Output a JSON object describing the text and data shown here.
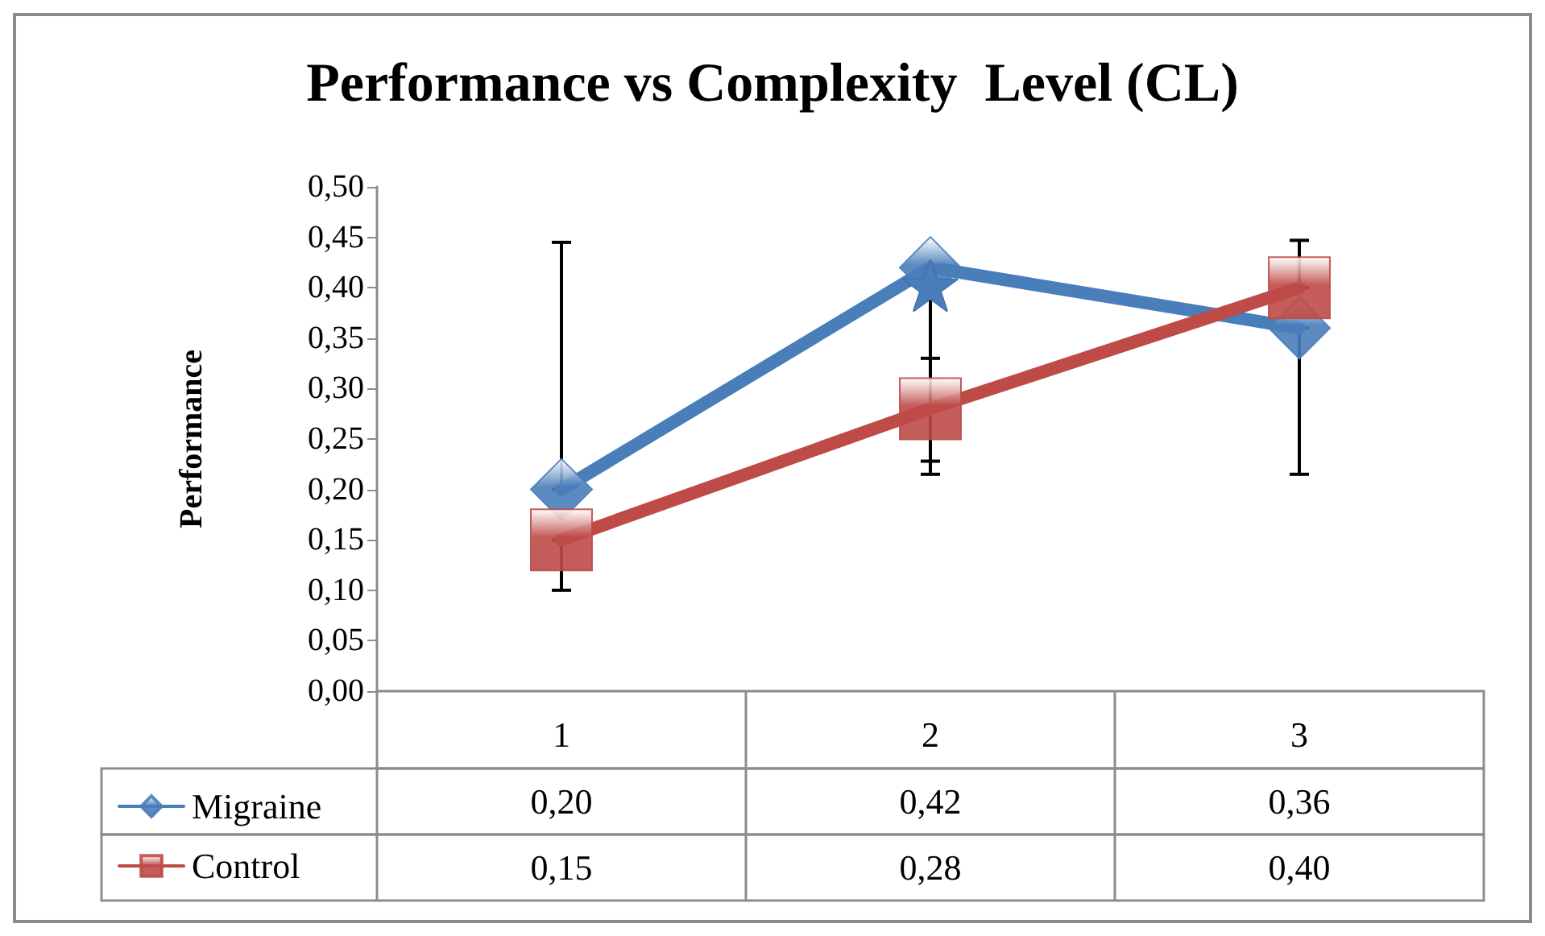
{
  "chart_data": {
    "type": "line",
    "title": "Performance vs Complexity  Level (CL)",
    "ylabel": "Performance",
    "categories": [
      "1",
      "2",
      "3"
    ],
    "series": [
      {
        "name": "Migraine",
        "color": "#4a7ebb",
        "marker": "diamond",
        "values": [
          0.2,
          0.42,
          0.36
        ],
        "value_labels": [
          "0,20",
          "0,42",
          "0,36"
        ],
        "errors": [
          [
            0.2,
            0.445
          ],
          [
            0.215,
            0.42
          ],
          [
            0.215,
            0.36
          ]
        ]
      },
      {
        "name": "Control",
        "color": "#be4b48",
        "marker": "square",
        "values": [
          0.15,
          0.28,
          0.4
        ],
        "value_labels": [
          "0,15",
          "0,28",
          "0,40"
        ],
        "errors": [
          [
            0.1,
            0.15
          ],
          [
            0.228,
            0.33
          ],
          [
            0.4,
            0.447
          ]
        ]
      }
    ],
    "ylim": [
      0,
      0.5
    ],
    "yticks": [
      {
        "value": 0,
        "label": "0,00"
      },
      {
        "value": 0.05,
        "label": "0,05"
      },
      {
        "value": 0.1,
        "label": "0,10"
      },
      {
        "value": 0.15,
        "label": "0,15"
      },
      {
        "value": 0.2,
        "label": "0,20"
      },
      {
        "value": 0.25,
        "label": "0,25"
      },
      {
        "value": 0.3,
        "label": "0,30"
      },
      {
        "value": 0.35,
        "label": "0,35"
      },
      {
        "value": 0.4,
        "label": "0,40"
      },
      {
        "value": 0.45,
        "label": "0,45"
      },
      {
        "value": 0.5,
        "label": "0,50"
      }
    ],
    "annotations": [
      {
        "text": "★",
        "x": "2",
        "y": 0.4
      }
    ],
    "grid": false,
    "legend": "bottom left",
    "line_style": "solid"
  }
}
